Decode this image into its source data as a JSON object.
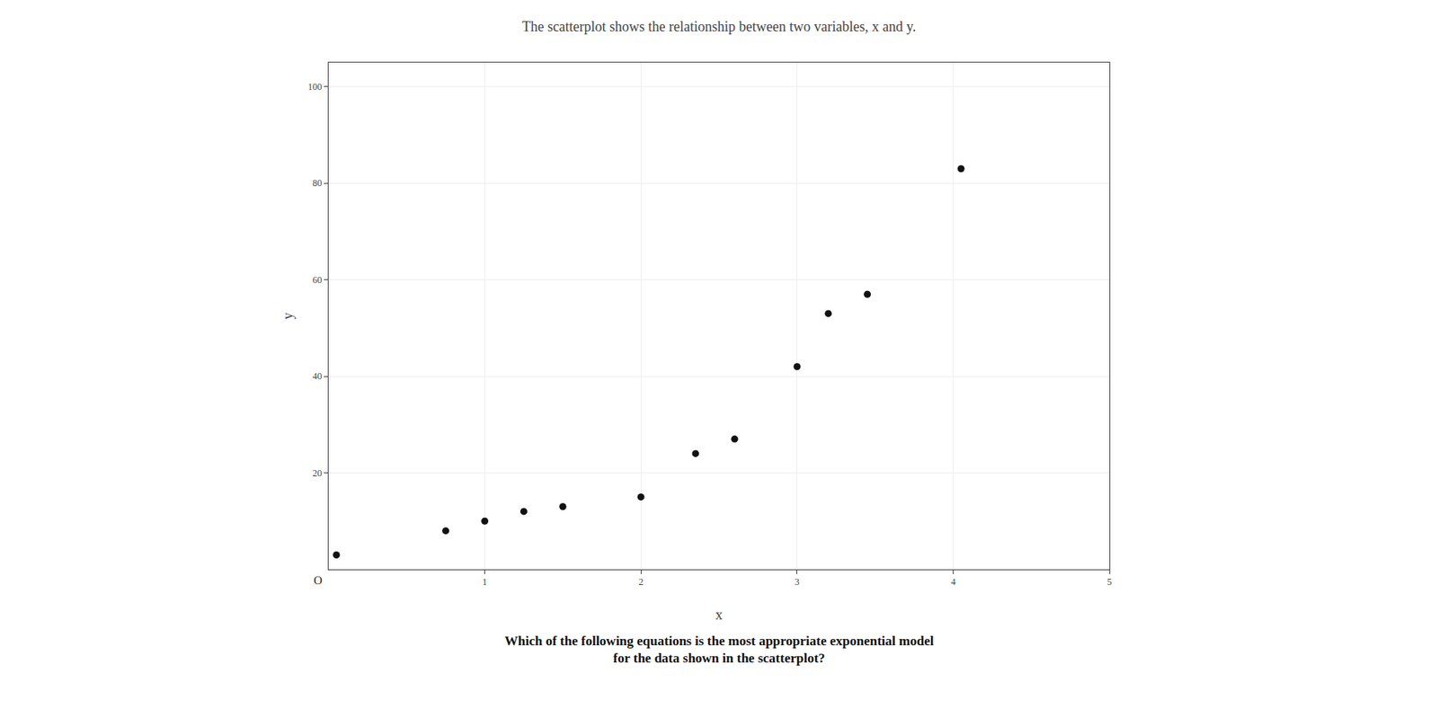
{
  "chart_data": {
    "type": "scatter",
    "title": "The scatterplot shows the relationship between two variables, x and y.",
    "subtitle": "Which of the following equations is the most appropriate exponential model\nfor the data shown in the scatterplot?",
    "x": [
      0.05,
      0.75,
      1.0,
      1.25,
      1.5,
      2.0,
      2.35,
      2.6,
      3.0,
      3.2,
      3.45,
      4.05
    ],
    "values": [
      3,
      8,
      10,
      12,
      13,
      15,
      24,
      27,
      42,
      53,
      57,
      83
    ],
    "color": "#111111",
    "xlabel": "x",
    "ylabel": "y",
    "annotations": [
      "O"
    ],
    "xlim": [
      0,
      5
    ],
    "ylim": [
      0,
      105
    ],
    "xticks": [
      1,
      2,
      3,
      4,
      5
    ],
    "yticks": [
      20,
      40,
      60,
      80,
      100
    ],
    "grid": true
  }
}
